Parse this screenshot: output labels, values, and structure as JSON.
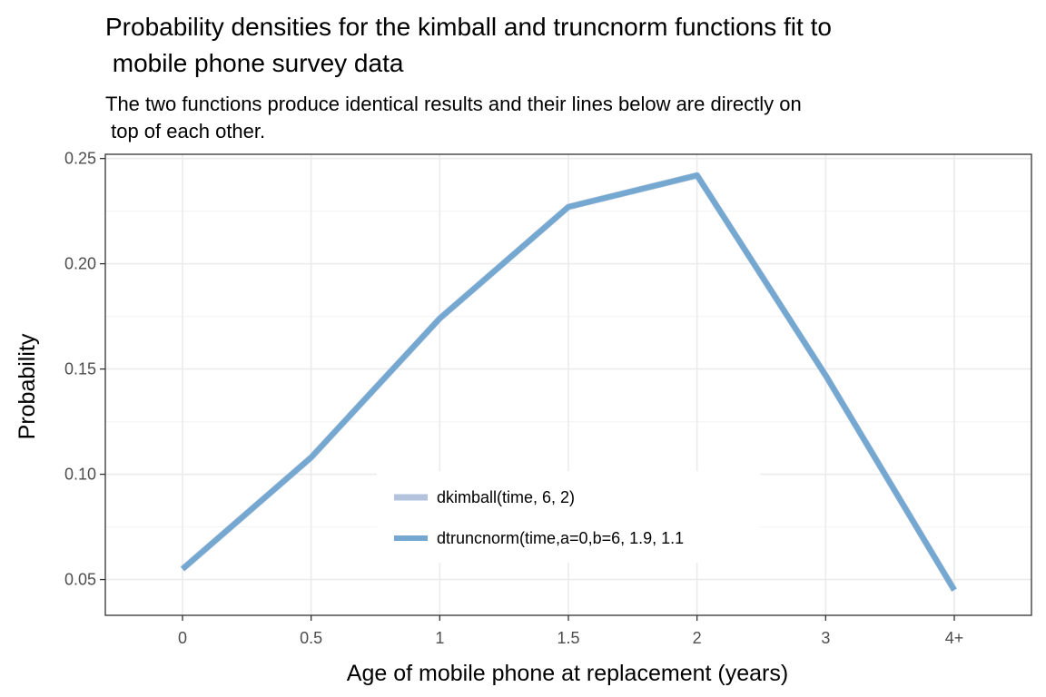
{
  "chart_data": {
    "type": "line",
    "title_lines": [
      "Probability densities for the kimball and truncnorm functions fit to",
      " mobile phone survey data"
    ],
    "subtitle_lines": [
      "The two functions produce identical results and their lines below are directly on",
      " top of each other."
    ],
    "xlabel": "Age of mobile phone at replacement (years)",
    "ylabel": "Probability",
    "categories": [
      "0",
      "0.5",
      "1",
      "1.5",
      "2",
      "3",
      "4+"
    ],
    "ylim": [
      0.033,
      0.252
    ],
    "yticks": [
      0.05,
      0.1,
      0.15,
      0.2,
      0.25
    ],
    "ytick_labels": [
      "0.05",
      "0.10",
      "0.15",
      "0.20",
      "0.25"
    ],
    "grid": true,
    "legend_position": "inside-bottom-center",
    "series": [
      {
        "name": "dkimball(time, 6, 2)",
        "color": "#b3c3de",
        "values": [
          0.055,
          0.108,
          0.174,
          0.227,
          0.242,
          0.147,
          0.045
        ]
      },
      {
        "name": "dtruncnorm(time,a=0,b=6, 1.9, 1.1",
        "color": "#75a8d0",
        "values": [
          0.055,
          0.108,
          0.174,
          0.227,
          0.242,
          0.147,
          0.045
        ]
      }
    ],
    "colors": {
      "panel_border": "#333333",
      "grid_major": "#ebebeb",
      "grid_minor": "#f5f5f5",
      "tick_text": "#4d4d4d"
    }
  }
}
